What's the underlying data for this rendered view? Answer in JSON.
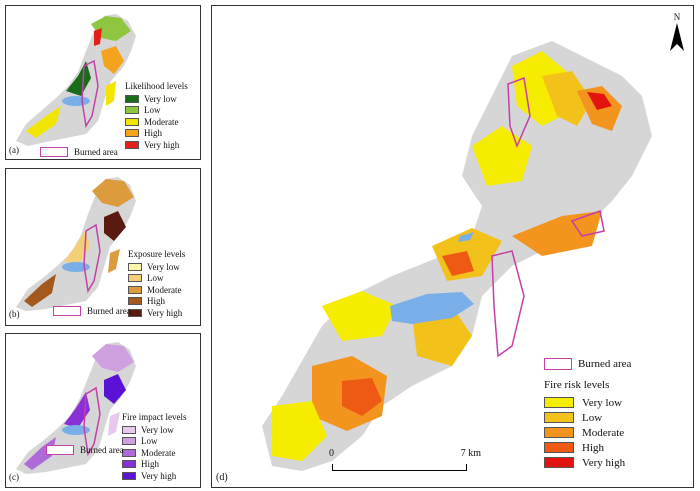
{
  "panel_a": {
    "tag": "(a)",
    "legend_title": "Likelihood levels",
    "levels": [
      {
        "label": "Very low",
        "color": "#1a6b1a"
      },
      {
        "label": "Low",
        "color": "#8ec63f"
      },
      {
        "label": "Moderate",
        "color": "#f2e600"
      },
      {
        "label": "High",
        "color": "#f5a21c"
      },
      {
        "label": "Very high",
        "color": "#e32119"
      }
    ],
    "burned_label": "Burned area"
  },
  "panel_b": {
    "tag": "(b)",
    "legend_title": "Exposure levels",
    "levels": [
      {
        "label": "Very low",
        "color": "#fff4a8"
      },
      {
        "label": "Low",
        "color": "#f4cf7a"
      },
      {
        "label": "Moderate",
        "color": "#dc9b3c"
      },
      {
        "label": "High",
        "color": "#a3591e"
      },
      {
        "label": "Very high",
        "color": "#5a1a10"
      }
    ],
    "burned_label": "Burned area"
  },
  "panel_c": {
    "tag": "(c)",
    "legend_title": "Fire impact levels",
    "levels": [
      {
        "label": "Very low",
        "color": "#e8c8ec"
      },
      {
        "label": "Low",
        "color": "#cfa0e0"
      },
      {
        "label": "Moderate",
        "color": "#ae6ad8"
      },
      {
        "label": "High",
        "color": "#8a2fd6"
      },
      {
        "label": "Very high",
        "color": "#5a13d6"
      }
    ],
    "burned_label": "Burned area"
  },
  "panel_d": {
    "tag": "(d)",
    "legend_title": "Fire risk levels",
    "levels": [
      {
        "label": "Very low",
        "color": "#f5ec00"
      },
      {
        "label": "Low",
        "color": "#f2c21a"
      },
      {
        "label": "Moderate",
        "color": "#f2941e"
      },
      {
        "label": "High",
        "color": "#ee5a14"
      },
      {
        "label": "Very high",
        "color": "#e3130f"
      }
    ],
    "burned_label": "Burned area",
    "north_label": "N",
    "scale_start": "0",
    "scale_end": "7 km"
  },
  "colors": {
    "background_land": "#d6d6d6",
    "lake": "#7aaee8",
    "burned_outline": "#c43fa8"
  }
}
